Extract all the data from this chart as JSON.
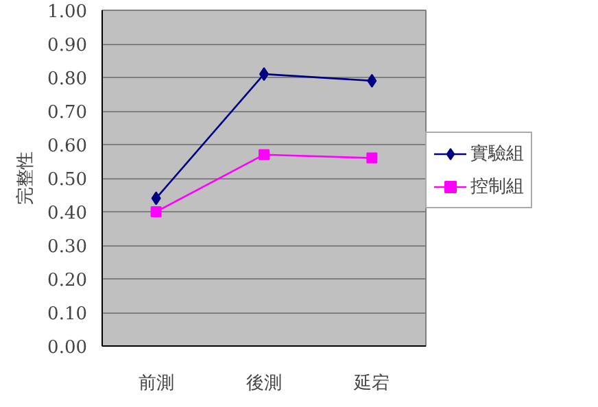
{
  "chart_data": {
    "type": "line",
    "ylabel": "完整性",
    "categories": [
      "前測",
      "後測",
      "延宕"
    ],
    "series": [
      {
        "name": "實驗組",
        "color": "#000080",
        "marker": "diamond",
        "values": [
          0.44,
          0.81,
          0.79
        ]
      },
      {
        "name": "控制組",
        "color": "#ff00ff",
        "marker": "square",
        "values": [
          0.4,
          0.57,
          0.56
        ]
      }
    ],
    "ylim": [
      0,
      1
    ],
    "yticks": [
      {
        "value": 0,
        "label": "0.00"
      },
      {
        "value": 0.1,
        "label": "0.10"
      },
      {
        "value": 0.2,
        "label": "0.20"
      },
      {
        "value": 0.3,
        "label": "0.30"
      },
      {
        "value": 0.4,
        "label": "0.40"
      },
      {
        "value": 0.5,
        "label": "0.50"
      },
      {
        "value": 0.6,
        "label": "0.60"
      },
      {
        "value": 0.7,
        "label": "0.70"
      },
      {
        "value": 0.8,
        "label": "0.80"
      },
      {
        "value": 0.9,
        "label": "0.90"
      },
      {
        "value": 1,
        "label": "1.00"
      }
    ],
    "grid": "y",
    "legend": "right"
  }
}
